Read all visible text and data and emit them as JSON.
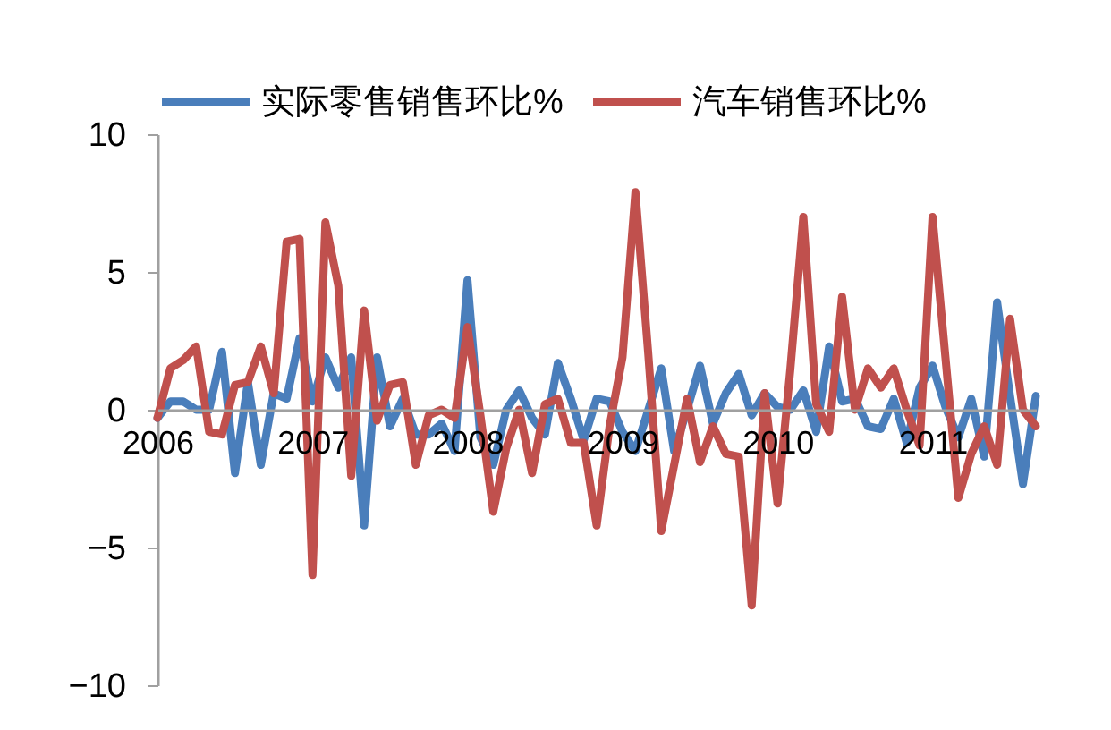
{
  "chart_data": {
    "type": "line",
    "categories": [
      "2006",
      null,
      null,
      null,
      null,
      null,
      null,
      null,
      null,
      null,
      null,
      null,
      "2007",
      null,
      null,
      null,
      null,
      null,
      null,
      null,
      null,
      null,
      null,
      null,
      "2008",
      null,
      null,
      null,
      null,
      null,
      null,
      null,
      null,
      null,
      null,
      null,
      "2009",
      null,
      null,
      null,
      null,
      null,
      null,
      null,
      null,
      null,
      null,
      null,
      "2010",
      null,
      null,
      null,
      null,
      null,
      null,
      null,
      null,
      null,
      null,
      null,
      "2011",
      null,
      null,
      null,
      null,
      null,
      null,
      null,
      null
    ],
    "series": [
      {
        "name": "实际零售销售环比%",
        "color": "#4a7ebb",
        "values": [
          -0.3,
          0.3,
          0.3,
          0,
          0,
          2.1,
          -2.3,
          1.0,
          -2.0,
          0.6,
          0.4,
          2.6,
          0.3,
          1.9,
          0.8,
          1.9,
          -4.2,
          1.9,
          -0.6,
          0.4,
          -0.9,
          -0.9,
          -0.5,
          -1.5,
          4.7,
          -1.0,
          -2.0,
          0,
          0.7,
          -0.3,
          -0.9,
          1.7,
          0.4,
          -1.1,
          0.4,
          0.3,
          -0.8,
          -1.5,
          0,
          1.5,
          -1.5,
          0,
          1.6,
          -0.5,
          0.6,
          1.3,
          -0.2,
          0.6,
          0.1,
          0,
          0.7,
          -0.8,
          2.3,
          0.3,
          0.4,
          -0.6,
          -0.7,
          0.4,
          -1.2,
          0.8,
          1.6,
          0.1,
          -1.0,
          0.4,
          -1.7,
          3.9,
          0.5,
          -2.7,
          0.5
        ]
      },
      {
        "name": "汽车销售环比%",
        "color": "#c0504d",
        "values": [
          -0.3,
          1.5,
          1.8,
          2.3,
          -0.8,
          -0.9,
          0.9,
          1.0,
          2.3,
          0.6,
          6.1,
          6.2,
          -6.0,
          6.8,
          4.5,
          -2.4,
          3.6,
          -0.4,
          0.9,
          1.0,
          -2.0,
          -0.2,
          0,
          -0.3,
          3.0,
          -0.2,
          -3.7,
          -1.4,
          0,
          -2.3,
          0.2,
          0.4,
          -1.2,
          -1.2,
          -4.2,
          -0.6,
          1.9,
          7.9,
          2.0,
          -4.4,
          -2.0,
          0.4,
          -1.9,
          -0.6,
          -1.6,
          -1.7,
          -7.1,
          0.6,
          -3.4,
          1.5,
          7.0,
          0.2,
          -0.8,
          4.1,
          0,
          1.5,
          0.8,
          1.5,
          0,
          -1.3,
          7.0,
          1.9,
          -3.2,
          -1.6,
          -0.6,
          -2.0,
          3.3,
          0,
          -0.6
        ]
      }
    ],
    "ylim": [
      -10,
      10
    ],
    "yticks": [
      -10,
      -5,
      0,
      5,
      10
    ],
    "grid": false,
    "legend": "top",
    "marker": "none",
    "line_style": "solid"
  }
}
